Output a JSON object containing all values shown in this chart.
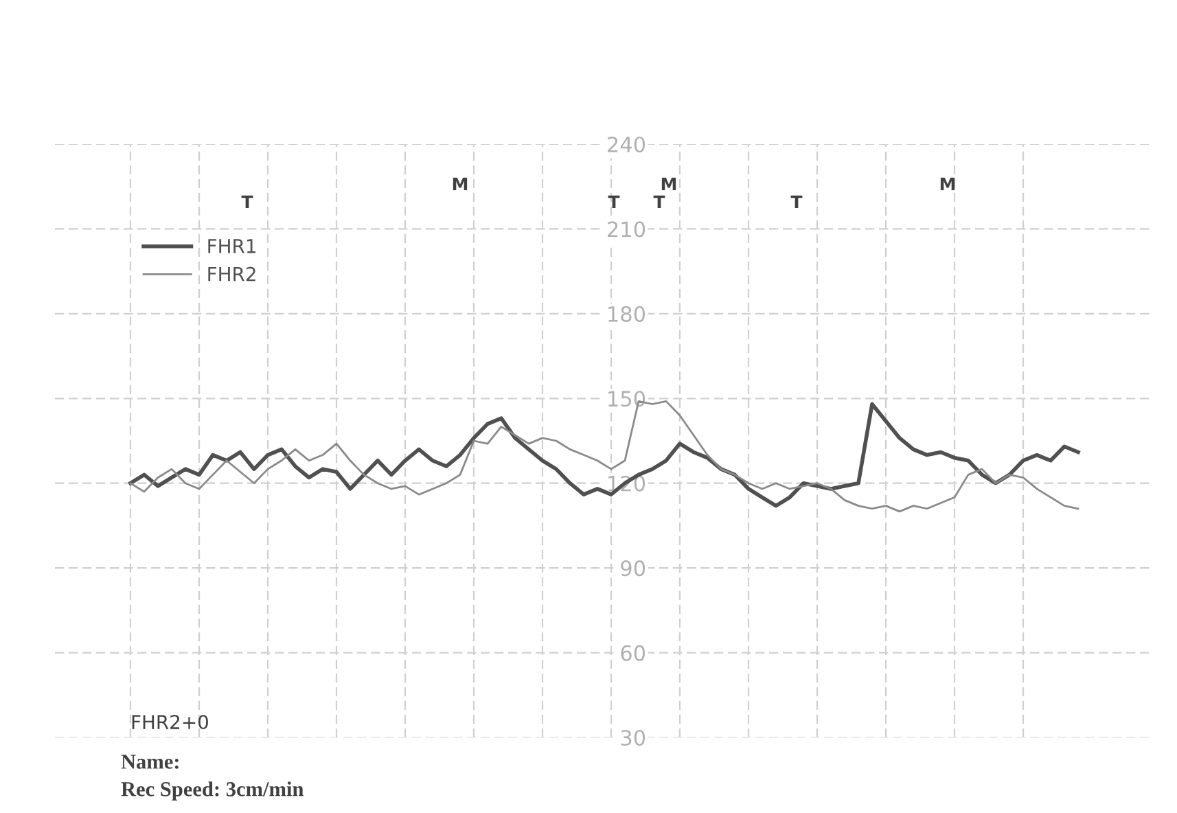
{
  "chart_data": {
    "type": "line",
    "categories": [
      null,
      null,
      null,
      null,
      null,
      null,
      null,
      null,
      null,
      null,
      null,
      null,
      null,
      null,
      null,
      null,
      null,
      null,
      null,
      null,
      null,
      null,
      null,
      null,
      null,
      null,
      null,
      null,
      null,
      null,
      null,
      null,
      null,
      null,
      null,
      null,
      null,
      null,
      null,
      null,
      null,
      null,
      null,
      null,
      null,
      null,
      null,
      null,
      null,
      null,
      null,
      null,
      null,
      null,
      null,
      null,
      null,
      null,
      null,
      null,
      null,
      null,
      null,
      null,
      null,
      null,
      null,
      null,
      null,
      null
    ],
    "series": [
      {
        "name": "FHR1",
        "color": "#505050",
        "values": [
          120,
          123,
          119,
          122,
          125,
          123,
          130,
          128,
          131,
          125,
          130,
          132,
          126,
          122,
          125,
          124,
          118,
          123,
          128,
          123,
          128,
          132,
          128,
          126,
          130,
          136,
          141,
          143,
          136,
          132,
          128,
          125,
          120,
          116,
          118,
          116,
          120,
          123,
          125,
          128,
          134,
          131,
          129,
          125,
          123,
          118,
          115,
          112,
          115,
          120,
          119,
          118,
          119,
          120,
          148,
          142,
          136,
          132,
          130,
          131,
          129,
          128,
          123,
          120,
          123,
          128,
          130,
          128,
          133,
          131
        ]
      },
      {
        "name": "FHR2",
        "color": "#8a8a8a",
        "values": [
          120,
          117,
          122,
          125,
          120,
          118,
          123,
          128,
          124,
          120,
          125,
          128,
          132,
          128,
          130,
          134,
          128,
          123,
          120,
          118,
          119,
          116,
          118,
          120,
          123,
          135,
          134,
          140,
          137,
          134,
          136,
          135,
          132,
          130,
          128,
          125,
          128,
          149,
          148,
          149,
          144,
          137,
          130,
          125,
          123,
          120,
          118,
          120,
          118,
          119,
          120,
          118,
          114,
          112,
          111,
          112,
          110,
          112,
          111,
          113,
          115,
          123,
          125,
          120,
          123,
          122,
          118,
          115,
          112,
          111
        ]
      }
    ],
    "ylim": [
      30,
      240
    ],
    "yticks": [
      30,
      60,
      90,
      120,
      150,
      180,
      210,
      240
    ],
    "grid": true,
    "legend": "top left",
    "annotations": [
      "T",
      "M",
      "T",
      "M",
      "T",
      "T",
      "M",
      "FHR2+0",
      "Name:",
      "Rec Speed: 3cm/min"
    ]
  }
}
